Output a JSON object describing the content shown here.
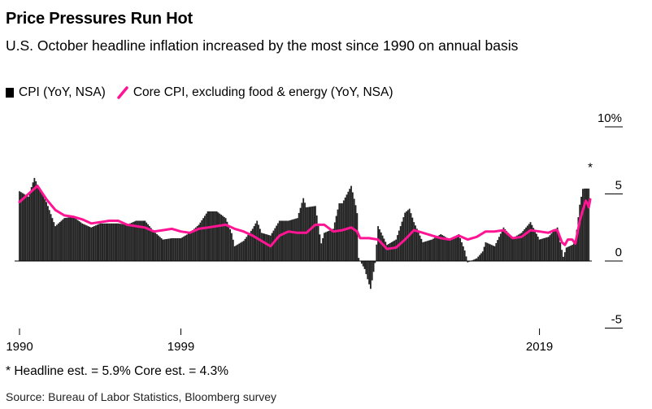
{
  "header": {
    "title": "Price Pressures Run Hot",
    "subtitle": "U.S. October headline inflation increased by the most since 1990 on annual basis"
  },
  "legend": [
    {
      "label": "CPI (YoY, NSA)",
      "icon": "square-icon",
      "color": "#000000"
    },
    {
      "label": "Core CPI, excluding food & energy (YoY, NSA)",
      "icon": "line-icon",
      "color": "#ff1493"
    }
  ],
  "footnote": "* Headline est. = 5.9% Core est. = 4.3%",
  "source": "Source: Bureau of Labor Statistics, Bloomberg survey",
  "chart_data": {
    "type": "bar",
    "title": "Price Pressures Run Hot",
    "xlabel": "",
    "ylabel": "",
    "x_range": [
      1990,
      2021.83
    ],
    "ylim": [
      -5,
      10
    ],
    "yticks": [
      -5,
      0,
      5,
      10
    ],
    "ytick_labels": [
      "-5",
      "0",
      "5",
      "10%"
    ],
    "xticks": [
      1990,
      1999,
      2019
    ],
    "xtick_labels": [
      "1990",
      "1999",
      "2019"
    ],
    "grid": false,
    "legend_position": "top-left",
    "annotation": {
      "text": "*",
      "x": 2021.83,
      "y": 6.2
    },
    "series": [
      {
        "name": "CPI (YoY, NSA)",
        "type": "bar",
        "color": "#222222",
        "points": [
          [
            1990.0,
            5.2
          ],
          [
            1990.5,
            4.8
          ],
          [
            1990.83,
            6.2
          ],
          [
            1991.0,
            5.7
          ],
          [
            1991.5,
            4.4
          ],
          [
            1992.0,
            2.6
          ],
          [
            1992.5,
            3.2
          ],
          [
            1993.0,
            3.3
          ],
          [
            1993.5,
            2.8
          ],
          [
            1994.0,
            2.5
          ],
          [
            1994.5,
            2.8
          ],
          [
            1995.0,
            2.8
          ],
          [
            1995.5,
            2.8
          ],
          [
            1996.0,
            2.7
          ],
          [
            1996.5,
            3.0
          ],
          [
            1997.0,
            3.0
          ],
          [
            1997.5,
            2.2
          ],
          [
            1998.0,
            1.6
          ],
          [
            1998.5,
            1.7
          ],
          [
            1999.0,
            1.7
          ],
          [
            1999.5,
            2.1
          ],
          [
            2000.0,
            2.7
          ],
          [
            2000.5,
            3.7
          ],
          [
            2001.0,
            3.7
          ],
          [
            2001.5,
            3.2
          ],
          [
            2001.83,
            2.1
          ],
          [
            2002.0,
            1.1
          ],
          [
            2002.5,
            1.5
          ],
          [
            2003.0,
            2.4
          ],
          [
            2003.25,
            3.0
          ],
          [
            2003.5,
            2.1
          ],
          [
            2004.0,
            1.9
          ],
          [
            2004.5,
            3.0
          ],
          [
            2005.0,
            3.0
          ],
          [
            2005.5,
            3.2
          ],
          [
            2005.83,
            4.7
          ],
          [
            2006.0,
            4.0
          ],
          [
            2006.5,
            4.1
          ],
          [
            2006.83,
            1.3
          ],
          [
            2007.0,
            2.1
          ],
          [
            2007.5,
            2.4
          ],
          [
            2007.83,
            4.3
          ],
          [
            2008.0,
            4.3
          ],
          [
            2008.5,
            5.6
          ],
          [
            2008.83,
            3.7
          ],
          [
            2008.92,
            0.1
          ],
          [
            2009.0,
            0.0
          ],
          [
            2009.25,
            -0.6
          ],
          [
            2009.58,
            -2.1
          ],
          [
            2009.83,
            -0.2
          ],
          [
            2010.0,
            2.6
          ],
          [
            2010.5,
            1.2
          ],
          [
            2011.0,
            1.6
          ],
          [
            2011.5,
            3.6
          ],
          [
            2011.75,
            3.9
          ],
          [
            2012.0,
            2.9
          ],
          [
            2012.5,
            1.4
          ],
          [
            2013.0,
            1.6
          ],
          [
            2013.5,
            2.0
          ],
          [
            2014.0,
            1.6
          ],
          [
            2014.5,
            2.0
          ],
          [
            2014.83,
            0.8
          ],
          [
            2015.0,
            -0.1
          ],
          [
            2015.5,
            0.2
          ],
          [
            2015.83,
            0.7
          ],
          [
            2016.0,
            1.4
          ],
          [
            2016.5,
            1.1
          ],
          [
            2017.0,
            2.5
          ],
          [
            2017.5,
            1.7
          ],
          [
            2018.0,
            2.1
          ],
          [
            2018.5,
            2.9
          ],
          [
            2019.0,
            1.6
          ],
          [
            2019.5,
            1.8
          ],
          [
            2019.83,
            2.3
          ],
          [
            2020.0,
            2.5
          ],
          [
            2020.33,
            0.3
          ],
          [
            2020.5,
            1.0
          ],
          [
            2020.83,
            1.2
          ],
          [
            2021.0,
            1.4
          ],
          [
            2021.25,
            4.2
          ],
          [
            2021.42,
            5.4
          ],
          [
            2021.58,
            5.4
          ],
          [
            2021.75,
            5.4
          ],
          [
            2021.83,
            6.2
          ]
        ]
      },
      {
        "name": "Core CPI, excluding food & energy (YoY, NSA)",
        "type": "line",
        "color": "#ff1493",
        "points": [
          [
            1990.0,
            4.4
          ],
          [
            1990.5,
            5.0
          ],
          [
            1991.0,
            5.6
          ],
          [
            1991.5,
            4.6
          ],
          [
            1992.0,
            3.8
          ],
          [
            1992.5,
            3.4
          ],
          [
            1993.0,
            3.3
          ],
          [
            1993.5,
            3.1
          ],
          [
            1994.0,
            2.8
          ],
          [
            1994.5,
            2.9
          ],
          [
            1995.0,
            3.0
          ],
          [
            1995.5,
            3.0
          ],
          [
            1996.0,
            2.7
          ],
          [
            1996.5,
            2.6
          ],
          [
            1997.0,
            2.5
          ],
          [
            1997.5,
            2.2
          ],
          [
            1998.0,
            2.3
          ],
          [
            1998.5,
            2.4
          ],
          [
            1999.0,
            2.2
          ],
          [
            1999.5,
            2.1
          ],
          [
            2000.0,
            2.4
          ],
          [
            2000.5,
            2.5
          ],
          [
            2001.0,
            2.6
          ],
          [
            2001.5,
            2.7
          ],
          [
            2002.0,
            2.4
          ],
          [
            2002.5,
            2.2
          ],
          [
            2003.0,
            1.9
          ],
          [
            2003.5,
            1.5
          ],
          [
            2004.0,
            1.1
          ],
          [
            2004.5,
            1.9
          ],
          [
            2005.0,
            2.2
          ],
          [
            2005.5,
            2.1
          ],
          [
            2006.0,
            2.1
          ],
          [
            2006.5,
            2.7
          ],
          [
            2007.0,
            2.7
          ],
          [
            2007.5,
            2.2
          ],
          [
            2008.0,
            2.3
          ],
          [
            2008.5,
            2.5
          ],
          [
            2008.83,
            2.2
          ],
          [
            2009.0,
            1.7
          ],
          [
            2009.5,
            1.7
          ],
          [
            2010.0,
            1.6
          ],
          [
            2010.5,
            0.9
          ],
          [
            2011.0,
            1.0
          ],
          [
            2011.5,
            1.6
          ],
          [
            2012.0,
            2.3
          ],
          [
            2012.5,
            2.1
          ],
          [
            2013.0,
            1.9
          ],
          [
            2013.5,
            1.7
          ],
          [
            2014.0,
            1.6
          ],
          [
            2014.5,
            1.9
          ],
          [
            2015.0,
            1.6
          ],
          [
            2015.5,
            1.8
          ],
          [
            2016.0,
            2.2
          ],
          [
            2016.5,
            2.2
          ],
          [
            2017.0,
            2.3
          ],
          [
            2017.5,
            1.7
          ],
          [
            2018.0,
            1.8
          ],
          [
            2018.5,
            2.3
          ],
          [
            2019.0,
            2.2
          ],
          [
            2019.5,
            2.1
          ],
          [
            2019.83,
            2.3
          ],
          [
            2020.0,
            2.3
          ],
          [
            2020.25,
            1.4
          ],
          [
            2020.42,
            1.2
          ],
          [
            2020.58,
            1.6
          ],
          [
            2020.83,
            1.6
          ],
          [
            2021.0,
            1.3
          ],
          [
            2021.25,
            3.0
          ],
          [
            2021.42,
            3.8
          ],
          [
            2021.58,
            4.5
          ],
          [
            2021.67,
            4.3
          ],
          [
            2021.75,
            4.0
          ],
          [
            2021.83,
            4.6
          ]
        ]
      }
    ]
  }
}
